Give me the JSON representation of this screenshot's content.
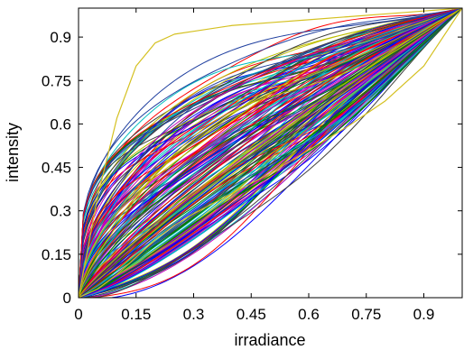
{
  "chart_data": {
    "type": "line",
    "title": "",
    "xlabel": "irradiance",
    "ylabel": "intensity",
    "xlim": [
      0,
      1
    ],
    "ylim": [
      0,
      1
    ],
    "x_ticks": [
      0,
      0.15,
      0.3,
      0.45,
      0.6,
      0.75,
      0.9
    ],
    "y_ticks": [
      0,
      0.15,
      0.3,
      0.45,
      0.6,
      0.75,
      0.9
    ],
    "x_tick_labels": [
      "0",
      "0.15",
      "0.3",
      "0.45",
      "0.6",
      "0.75",
      "0.9"
    ],
    "y_tick_labels": [
      "0",
      "0.15",
      "0.3",
      "0.45",
      "0.6",
      "0.75",
      "0.9"
    ],
    "grid": false,
    "legend": "none",
    "series_count": 200,
    "palette": [
      "#0000ff",
      "#008000",
      "#ff0000",
      "#00bfbf",
      "#bf00bf",
      "#bfbf00",
      "#404040",
      "#1f3f9f"
    ],
    "bounding_series": {
      "upper": {
        "x": [
          0,
          0.05,
          0.1,
          0.15,
          0.2,
          0.25,
          0.3,
          0.4,
          0.5,
          0.6,
          0.7,
          0.8,
          0.9,
          1.0
        ],
        "y": [
          0,
          0.35,
          0.62,
          0.8,
          0.88,
          0.91,
          0.92,
          0.94,
          0.95,
          0.96,
          0.97,
          0.98,
          0.99,
          1.0
        ]
      },
      "lower": {
        "x": [
          0,
          0.05,
          0.1,
          0.15,
          0.2,
          0.25,
          0.3,
          0.4,
          0.5,
          0.6,
          0.7,
          0.8,
          0.9,
          1.0
        ],
        "y": [
          0,
          0.03,
          0.08,
          0.14,
          0.2,
          0.25,
          0.29,
          0.36,
          0.43,
          0.51,
          0.59,
          0.68,
          0.8,
          1.0
        ]
      }
    }
  }
}
